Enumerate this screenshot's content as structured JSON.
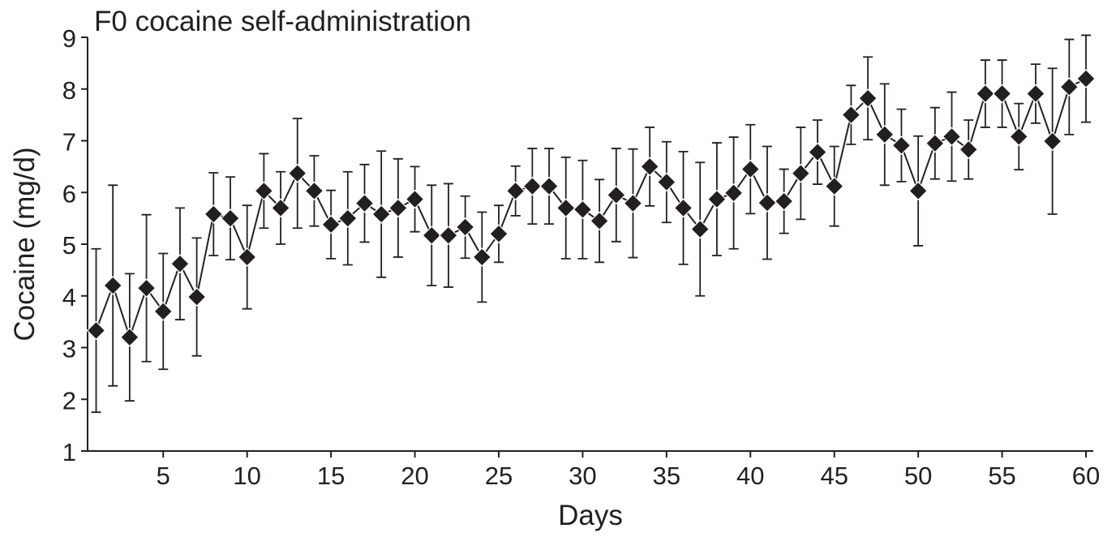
{
  "chart_data": {
    "type": "line",
    "title": "F0 cocaine self-administration",
    "xlabel": "Days",
    "ylabel": "Cocaine (mg/d)",
    "xlim": [
      0.5,
      60.5
    ],
    "ylim": [
      1,
      9
    ],
    "x_ticks": [
      5,
      10,
      15,
      20,
      25,
      30,
      35,
      40,
      45,
      50,
      55,
      60
    ],
    "y_ticks": [
      1,
      2,
      3,
      4,
      5,
      6,
      7,
      8,
      9
    ],
    "grid": false,
    "marker": "diamond",
    "colors": {
      "series": "#231f20",
      "background": "#ffffff"
    },
    "x": [
      1,
      2,
      3,
      4,
      5,
      6,
      7,
      8,
      9,
      10,
      11,
      12,
      13,
      14,
      15,
      16,
      17,
      18,
      19,
      20,
      21,
      22,
      23,
      24,
      25,
      26,
      27,
      28,
      29,
      30,
      31,
      32,
      33,
      34,
      35,
      36,
      37,
      38,
      39,
      40,
      41,
      42,
      43,
      44,
      45,
      46,
      47,
      48,
      49,
      50,
      51,
      52,
      53,
      54,
      55,
      56,
      57,
      58,
      59,
      60
    ],
    "series": [
      {
        "values": [
          3.33,
          4.2,
          3.2,
          4.15,
          3.7,
          4.62,
          3.98,
          5.58,
          5.5,
          4.75,
          6.03,
          5.7,
          6.37,
          6.03,
          5.38,
          5.5,
          5.79,
          5.58,
          5.7,
          5.87,
          5.17,
          5.17,
          5.33,
          4.75,
          5.2,
          6.03,
          6.12,
          6.12,
          5.7,
          5.67,
          5.45,
          5.95,
          5.79,
          6.5,
          6.2,
          5.7,
          5.29,
          5.87,
          5.99,
          6.45,
          5.8,
          5.83,
          6.37,
          6.78,
          6.12,
          7.5,
          7.82,
          7.12,
          6.91,
          6.03,
          6.95,
          7.08,
          6.83,
          7.91,
          7.91,
          7.08,
          7.91,
          6.99,
          8.04,
          8.2
        ],
        "error": [
          1.58,
          1.94,
          1.23,
          1.42,
          1.12,
          1.08,
          1.14,
          0.8,
          0.8,
          1.0,
          0.72,
          0.7,
          1.06,
          0.68,
          0.66,
          0.9,
          0.75,
          1.22,
          0.95,
          0.63,
          0.97,
          1.0,
          0.6,
          0.87,
          0.55,
          0.48,
          0.73,
          0.73,
          0.98,
          0.95,
          0.8,
          0.9,
          1.05,
          0.76,
          0.78,
          1.09,
          1.29,
          1.09,
          1.08,
          0.86,
          1.09,
          0.62,
          0.89,
          0.62,
          0.77,
          0.57,
          0.8,
          0.98,
          0.7,
          1.06,
          0.69,
          0.86,
          0.57,
          0.65,
          0.65,
          0.64,
          0.57,
          1.41,
          0.92,
          0.84
        ]
      }
    ]
  }
}
